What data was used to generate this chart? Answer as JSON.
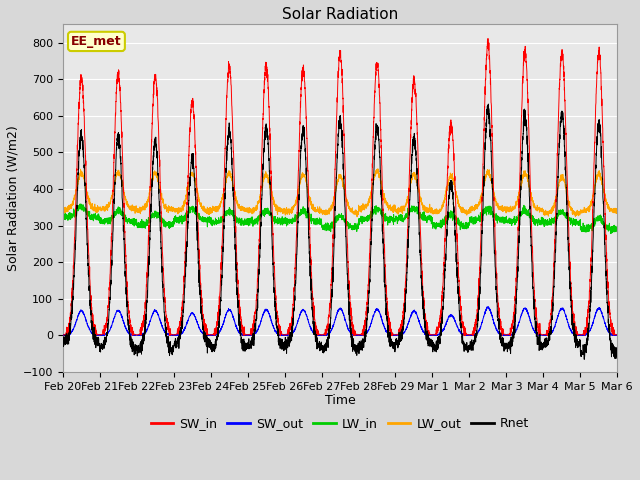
{
  "title": "Solar Radiation",
  "xlabel": "Time",
  "ylabel": "Solar Radiation (W/m2)",
  "ylim": [
    -100,
    850
  ],
  "yticks": [
    -100,
    0,
    100,
    200,
    300,
    400,
    500,
    600,
    700,
    800
  ],
  "date_labels": [
    "Feb 20",
    "Feb 21",
    "Feb 22",
    "Feb 23",
    "Feb 24",
    "Feb 25",
    "Feb 26",
    "Feb 27",
    "Feb 28",
    "Feb 29",
    "Mar 1",
    "Mar 2",
    "Mar 3",
    "Mar 4",
    "Mar 5",
    "Mar 6"
  ],
  "n_days": 15,
  "pts_per_day": 288,
  "station_label": "EE_met",
  "sw_in_color": "#ff0000",
  "sw_out_color": "#0000ff",
  "lw_in_color": "#00cc00",
  "lw_out_color": "#ffa500",
  "rnet_color": "#000000",
  "fig_bg_color": "#d8d8d8",
  "plot_bg_color": "#e8e8e8",
  "grid_color": "#ffffff",
  "title_fontsize": 11,
  "label_fontsize": 9,
  "tick_fontsize": 8,
  "legend_fontsize": 9,
  "sw_peaks": [
    705,
    715,
    710,
    635,
    735,
    740,
    730,
    770,
    745,
    695,
    580,
    795,
    775,
    775,
    775
  ],
  "line_width": 0.7
}
